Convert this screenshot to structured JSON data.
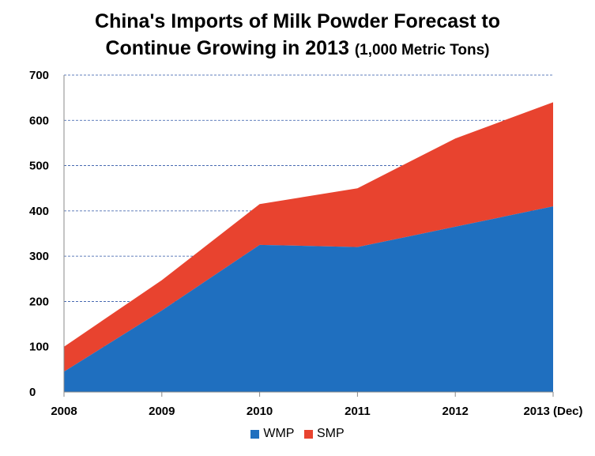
{
  "chart_data": {
    "type": "area",
    "stacked": true,
    "title_line1": "China's Imports of Milk Powder Forecast to",
    "title_line2": "Continue Growing in 2013",
    "title_unit": "(1,000 Metric Tons)",
    "xlabel": "",
    "ylabel": "",
    "categories": [
      "2008",
      "2009",
      "2010",
      "2011",
      "2012",
      "2013 (Dec)"
    ],
    "ylim": [
      0,
      700
    ],
    "yticks": [
      "0",
      "100",
      "200",
      "300",
      "400",
      "500",
      "600",
      "700"
    ],
    "grid": "horizontal dashed",
    "legend_position": "bottom",
    "series": [
      {
        "name": "WMP",
        "color": "#1f6fbf",
        "values": [
          45,
          180,
          325,
          320,
          365,
          410
        ]
      },
      {
        "name": "SMP",
        "color": "#e8432f",
        "values": [
          55,
          67,
          90,
          130,
          195,
          230
        ]
      }
    ]
  }
}
